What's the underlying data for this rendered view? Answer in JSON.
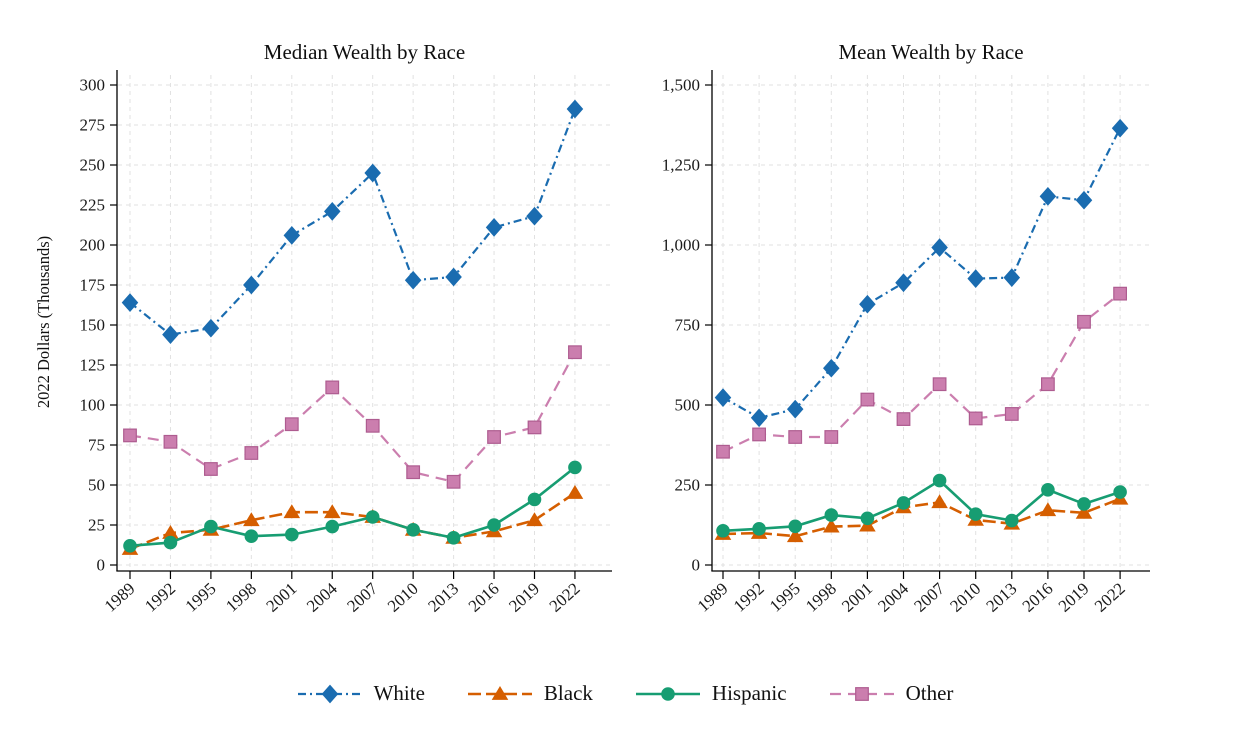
{
  "figure": {
    "ylabel": "2022 Dollars (Thousands)",
    "background": "#ffffff"
  },
  "legend": {
    "items": [
      {
        "label": "White",
        "color": "#1a6cb0",
        "edge": "#1a6cb0",
        "marker": "diamond",
        "dash": "dashdot",
        "width": 2.2
      },
      {
        "label": "Black",
        "color": "#d55e00",
        "edge": "#d55e00",
        "marker": "triangle",
        "dash": "longdash",
        "width": 2.6
      },
      {
        "label": "Hispanic",
        "color": "#179d72",
        "edge": "#179d72",
        "marker": "circle",
        "dash": "solid",
        "width": 2.6
      },
      {
        "label": "Other",
        "color": "#cb7eae",
        "edge": "#ae5c90",
        "marker": "square",
        "dash": "dash",
        "width": 2.2
      }
    ]
  },
  "chart_data": [
    {
      "type": "line",
      "title": "Median Wealth by Race",
      "categories": [
        "1989",
        "1992",
        "1995",
        "1998",
        "2001",
        "2004",
        "2007",
        "2010",
        "2013",
        "2016",
        "2019",
        "2022"
      ],
      "ylim": [
        0,
        300
      ],
      "yticks": [
        0,
        25,
        50,
        75,
        100,
        125,
        150,
        175,
        200,
        225,
        250,
        275,
        300
      ],
      "ytick_labels": [
        "0",
        "25",
        "50",
        "75",
        "100",
        "125",
        "150",
        "175",
        "200",
        "225",
        "250",
        "275",
        "300"
      ],
      "grid": "on",
      "series": [
        {
          "name": "White",
          "values": [
            164,
            144,
            148,
            175,
            206,
            221,
            245,
            178,
            180,
            211,
            218,
            285
          ]
        },
        {
          "name": "Black",
          "values": [
            10,
            20,
            22,
            28,
            33,
            33,
            30,
            22,
            17,
            21,
            28,
            45
          ]
        },
        {
          "name": "Hispanic",
          "values": [
            12,
            14,
            24,
            18,
            19,
            24,
            30,
            22,
            17,
            25,
            41,
            61
          ]
        },
        {
          "name": "Other",
          "values": [
            81,
            77,
            60,
            70,
            88,
            111,
            87,
            58,
            52,
            80,
            86,
            133
          ]
        }
      ]
    },
    {
      "type": "line",
      "title": "Mean Wealth by Race",
      "categories": [
        "1989",
        "1992",
        "1995",
        "1998",
        "2001",
        "2004",
        "2007",
        "2010",
        "2013",
        "2016",
        "2019",
        "2022"
      ],
      "ylim": [
        0,
        1500
      ],
      "yticks": [
        0,
        250,
        500,
        750,
        1000,
        1250,
        1500
      ],
      "ytick_labels": [
        "0",
        "250",
        "500",
        "750",
        "1,000",
        "1,250",
        "1,500"
      ],
      "grid": "on",
      "series": [
        {
          "name": "White",
          "values": [
            523,
            460,
            487,
            615,
            815,
            882,
            992,
            895,
            898,
            1152,
            1140,
            1365
          ]
        },
        {
          "name": "Black",
          "values": [
            97,
            100,
            90,
            120,
            123,
            180,
            196,
            141,
            129,
            171,
            163,
            207
          ]
        },
        {
          "name": "Hispanic",
          "values": [
            107,
            113,
            121,
            156,
            146,
            194,
            264,
            159,
            139,
            235,
            191,
            228
          ]
        },
        {
          "name": "Other",
          "values": [
            354,
            408,
            400,
            400,
            517,
            456,
            565,
            458,
            472,
            565,
            760,
            848
          ]
        }
      ]
    }
  ]
}
